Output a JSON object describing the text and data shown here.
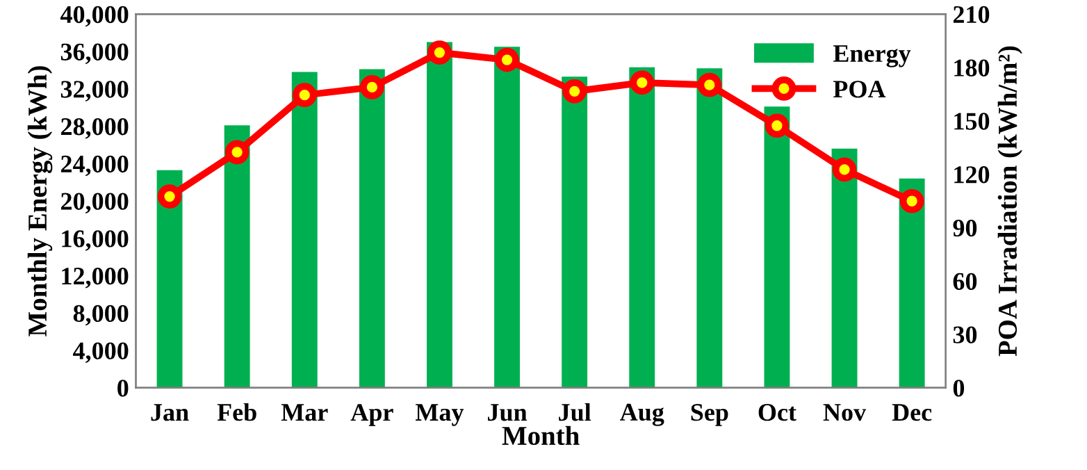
{
  "chart_data": {
    "type": "bar",
    "xlabel": "Month",
    "ylabel": "Monthly Energy (kWh)",
    "y2label": "POA Irradiation (kWh/m²)",
    "categories": [
      "Jan",
      "Feb",
      "Mar",
      "Apr",
      "May",
      "Jun",
      "Jul",
      "Aug",
      "Sep",
      "Oct",
      "Nov",
      "Dec"
    ],
    "series": [
      {
        "name": "Energy",
        "color": "#00b050",
        "values": [
          23300,
          28100,
          33800,
          34100,
          37000,
          36500,
          33300,
          34300,
          34200,
          30100,
          25600,
          22400
        ]
      },
      {
        "name": "POA",
        "type": "line",
        "axis": "y2",
        "color": "#ff0000",
        "marker": "circle",
        "values": [
          107.5,
          132.4,
          164.5,
          168.9,
          188.4,
          184.3,
          166.6,
          171.5,
          170.2,
          147.3,
          122.6,
          104.9
        ]
      }
    ],
    "ylim": [
      0,
      40000
    ],
    "yticks": [
      {
        "value": 0,
        "label": "0"
      },
      {
        "value": 4000,
        "label": "4,000"
      },
      {
        "value": 8000,
        "label": "8,000"
      },
      {
        "value": 12000,
        "label": "12,000"
      },
      {
        "value": 16000,
        "label": "16,000"
      },
      {
        "value": 20000,
        "label": "20,000"
      },
      {
        "value": 24000,
        "label": "24,000"
      },
      {
        "value": 28000,
        "label": "28,000"
      },
      {
        "value": 32000,
        "label": "32,000"
      },
      {
        "value": 36000,
        "label": "36,000"
      },
      {
        "value": 40000,
        "label": "40,000"
      }
    ],
    "y2lim": [
      0,
      210
    ],
    "y2ticks": [
      0,
      30,
      60,
      90,
      120,
      150,
      180,
      210
    ],
    "grid": false,
    "legend": "top right"
  }
}
